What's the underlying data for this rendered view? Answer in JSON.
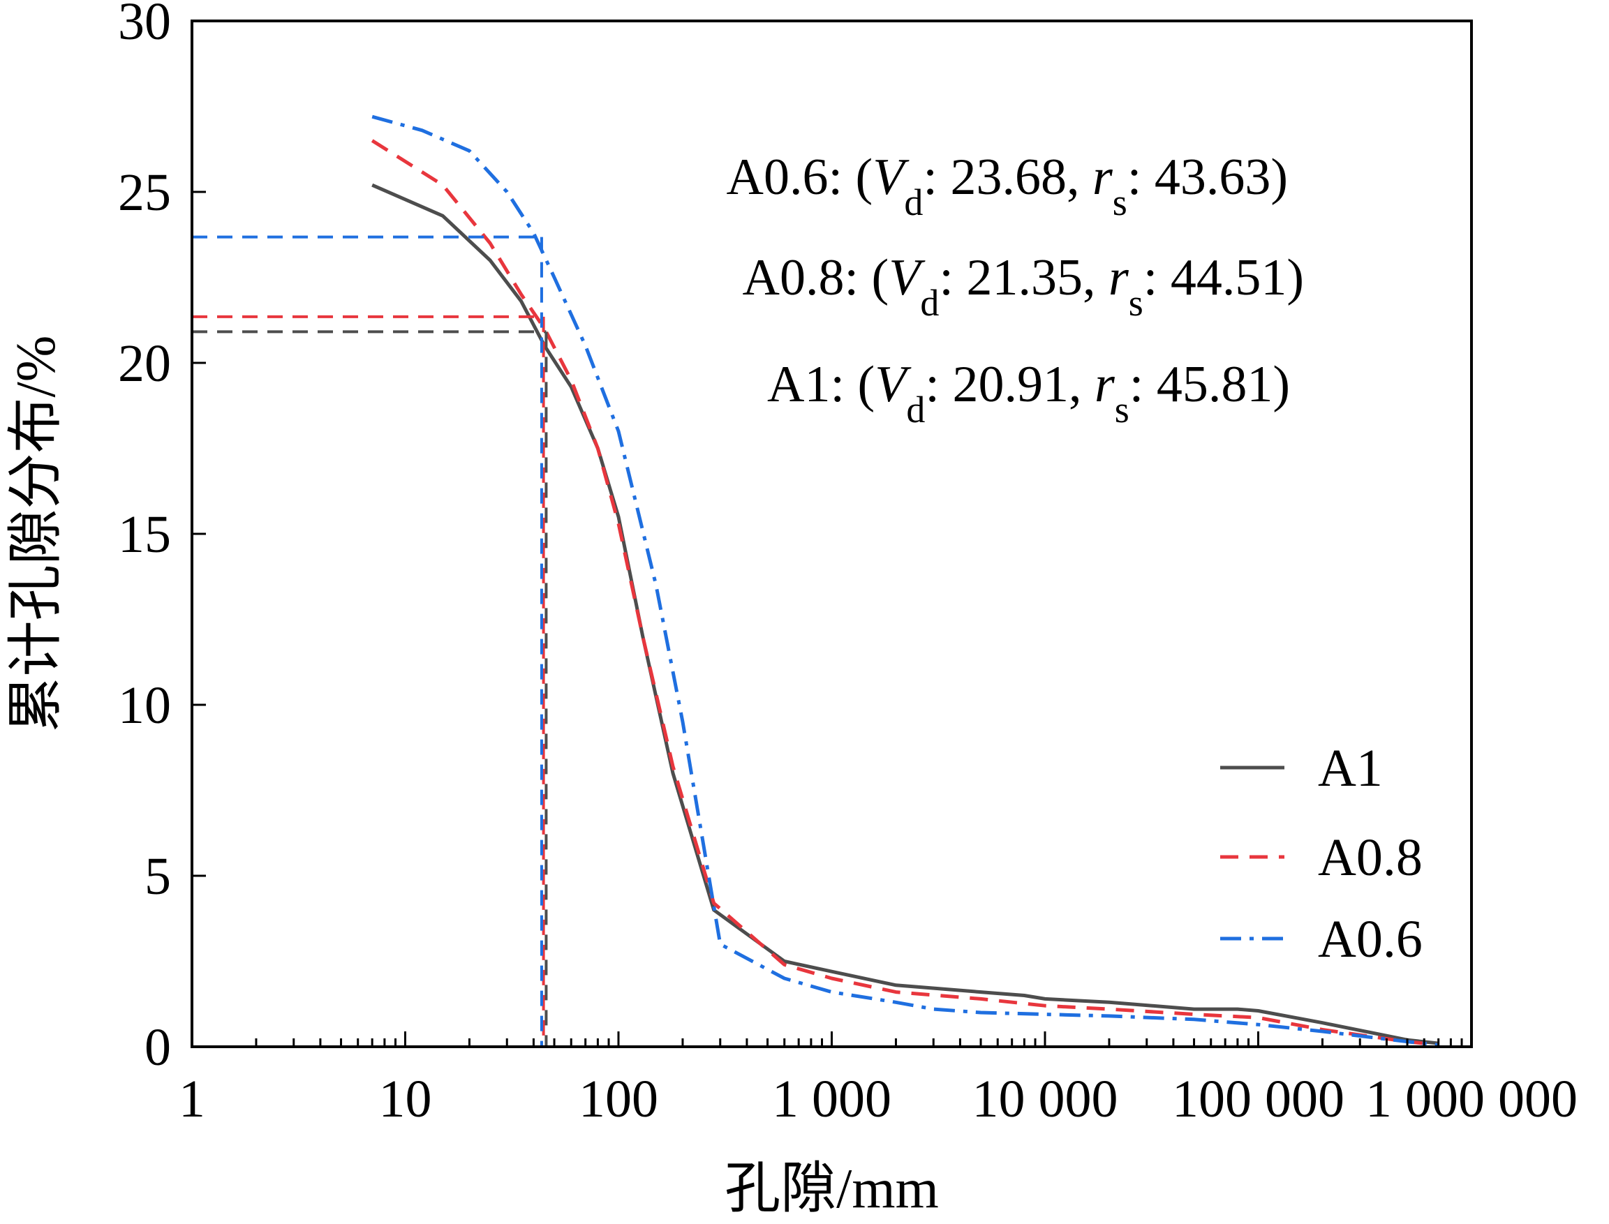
{
  "chart_data": {
    "type": "line",
    "xlabel": "孔隙/mm",
    "ylabel": "累计孔隙分布/%",
    "x_scale": "log",
    "xlim": [
      1,
      1000000
    ],
    "ylim": [
      0,
      30
    ],
    "x_ticks": [
      {
        "value": 1,
        "label": "1"
      },
      {
        "value": 10,
        "label": "10"
      },
      {
        "value": 100,
        "label": "100"
      },
      {
        "value": 1000,
        "label": "1 000"
      },
      {
        "value": 10000,
        "label": "10 000"
      },
      {
        "value": 100000,
        "label": "100 000"
      },
      {
        "value": 1000000,
        "label": "1 000 000"
      }
    ],
    "y_ticks": [
      {
        "value": 0,
        "label": "0"
      },
      {
        "value": 5,
        "label": "5"
      },
      {
        "value": 10,
        "label": "10"
      },
      {
        "value": 15,
        "label": "15"
      },
      {
        "value": 20,
        "label": "20"
      },
      {
        "value": 25,
        "label": "25"
      },
      {
        "value": 30,
        "label": "30"
      }
    ],
    "grid": false,
    "legend_position": "bottom-right",
    "series": [
      {
        "name": "A1",
        "color": "#4d4d4d",
        "dash": "solid",
        "x": [
          7,
          15,
          25,
          35,
          45,
          60,
          80,
          100,
          130,
          180,
          280,
          600,
          1000,
          2000,
          5000,
          8000,
          10000,
          20000,
          50000,
          80000,
          100000,
          200000,
          500000,
          700000
        ],
        "y": [
          25.2,
          24.3,
          23.0,
          21.8,
          20.5,
          19.3,
          17.5,
          15.5,
          12.0,
          8.0,
          4.0,
          2.5,
          2.2,
          1.8,
          1.6,
          1.5,
          1.4,
          1.3,
          1.1,
          1.1,
          1.05,
          0.7,
          0.2,
          0.1
        ]
      },
      {
        "name": "A0.8",
        "color": "#e8363d",
        "dash": "dashed",
        "x": [
          7,
          15,
          25,
          35,
          45,
          60,
          80,
          100,
          130,
          180,
          280,
          600,
          1000,
          2000,
          5000,
          10000,
          20000,
          50000,
          100000,
          200000,
          500000,
          700000
        ],
        "y": [
          26.5,
          25.2,
          23.5,
          22.0,
          21.0,
          19.5,
          17.5,
          15.3,
          12.0,
          8.2,
          4.2,
          2.4,
          2.0,
          1.6,
          1.4,
          1.2,
          1.1,
          0.95,
          0.85,
          0.5,
          0.15,
          0.05
        ]
      },
      {
        "name": "A0.6",
        "color": "#1f6fe0",
        "dash": "dashdot",
        "x": [
          7,
          12,
          20,
          30,
          40,
          50,
          70,
          100,
          150,
          200,
          300,
          600,
          1000,
          2000,
          3000,
          5000,
          10000,
          20000,
          50000,
          100000,
          200000,
          500000,
          700000
        ],
        "y": [
          27.2,
          26.8,
          26.2,
          25.0,
          23.8,
          22.5,
          20.5,
          18.0,
          13.5,
          9.5,
          3.0,
          2.0,
          1.6,
          1.3,
          1.1,
          1.0,
          0.95,
          0.9,
          0.8,
          0.65,
          0.45,
          0.15,
          0.05
        ]
      }
    ],
    "reference_lines": [
      {
        "series": "A1",
        "x": 45.81,
        "y": 20.91,
        "color": "#4d4d4d"
      },
      {
        "series": "A0.8",
        "x": 44.51,
        "y": 21.35,
        "color": "#e8363d"
      },
      {
        "series": "A0.6",
        "x": 43.63,
        "y": 23.68,
        "color": "#1f6fe0"
      }
    ],
    "annotations": [
      {
        "label": "A0.6: (",
        "vd_sym": "V",
        "vd_sub": "d",
        "vd_val": ": 23.68, ",
        "rs_sym": "r",
        "rs_sub": "s",
        "rs_val": ": 43.63)"
      },
      {
        "label": "A0.8: (",
        "vd_sym": "V",
        "vd_sub": "d",
        "vd_val": ": 21.35, ",
        "rs_sym": "r",
        "rs_sub": "s",
        "rs_val": ": 44.51)"
      },
      {
        "label": "A1: (",
        "vd_sym": "V",
        "vd_sub": "d",
        "vd_val": ": 20.91, ",
        "rs_sym": "r",
        "rs_sub": "s",
        "rs_val": ": 45.81)"
      }
    ]
  }
}
